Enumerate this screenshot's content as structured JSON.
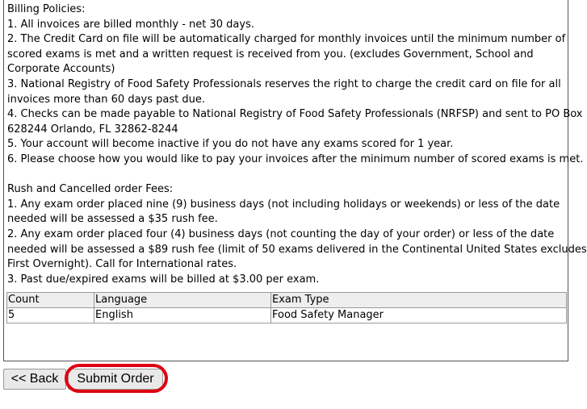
{
  "billing": {
    "title": "Billing Policies:",
    "lines": [
      "1. All invoices are billed monthly - net 30 days.",
      "2. The Credit Card on file will be automatically charged for monthly invoices until the minimum number of",
      "scored exams is met and a written request is received from you. (excludes Government, School and",
      "Corporate Accounts)",
      "3. National Registry of Food Safety Professionals reserves the right to charge the credit card on file for all",
      "invoices more than 60 days past due.",
      "4. Checks can be made payable to National Registry of Food Safety Professionals (NRFSP) and sent to PO Box",
      "628244 Orlando, FL 32862-8244",
      "5. Your account will become inactive if you do not have any exams scored for 1 year.",
      "6. Please choose how you would like to pay your invoices after the minimum number of scored exams is met."
    ]
  },
  "rush": {
    "title": "Rush and Cancelled order Fees:",
    "lines": [
      "1. Any exam order placed nine (9) business days (not including holidays or weekends) or less of the date",
      "needed will be assessed a $35 rush fee.",
      "2. Any exam order placed four (4) business days (not counting the day of your order) or less of the date",
      "needed will be assessed a $89 rush fee (limit of 50 exams delivered in the Continental United States excludes",
      "First Overnight). Call for International rates.",
      "3. Past due/expired exams will be billed at $3.00 per exam."
    ]
  },
  "order_table": {
    "headers": [
      "Count",
      "Language",
      "Exam Type"
    ],
    "rows": [
      [
        "5",
        "English",
        "Food Safety Manager"
      ]
    ]
  },
  "buttons": {
    "back": "<< Back",
    "submit": "Submit Order"
  },
  "colors": {
    "highlight_ring": "#e0000f"
  }
}
